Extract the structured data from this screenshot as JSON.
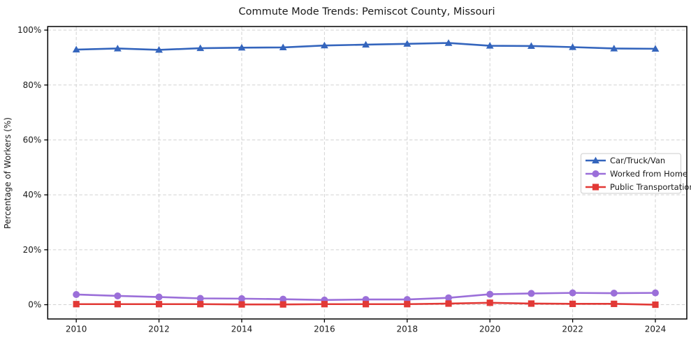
{
  "title": "Commute Mode Trends: Pemiscot County, Missouri",
  "ylabel": "Percentage of Workers (%)",
  "colors": {
    "car": "#3465bd",
    "home": "#9b6fd9",
    "transit": "#e23936",
    "grid": "#d2d2d2",
    "spine": "#000000",
    "legend_border": "#cccccc",
    "background": "#ffffff"
  },
  "chart_data": {
    "type": "line",
    "title": "Commute Mode Trends: Pemiscot County, Missouri",
    "xlabel": "",
    "ylabel": "Percentage of Workers (%)",
    "x": [
      2010,
      2011,
      2012,
      2013,
      2014,
      2015,
      2016,
      2017,
      2018,
      2019,
      2020,
      2021,
      2022,
      2023,
      2024
    ],
    "series": [
      {
        "name": "Car/Truck/Van",
        "color": "#3465bd",
        "marker": "triangle",
        "values": [
          92.9,
          93.3,
          92.8,
          93.4,
          93.6,
          93.7,
          94.4,
          94.7,
          95.0,
          95.3,
          94.3,
          94.2,
          93.8,
          93.3,
          93.2
        ]
      },
      {
        "name": "Worked from Home",
        "color": "#9b6fd9",
        "marker": "circle",
        "values": [
          3.7,
          3.2,
          2.8,
          2.3,
          2.2,
          2.0,
          1.7,
          1.9,
          1.9,
          2.5,
          3.8,
          4.1,
          4.3,
          4.2,
          4.3
        ]
      },
      {
        "name": "Public Transportation",
        "color": "#e23936",
        "marker": "square",
        "values": [
          0.2,
          0.2,
          0.2,
          0.2,
          0.1,
          0.1,
          0.2,
          0.2,
          0.2,
          0.4,
          0.7,
          0.4,
          0.3,
          0.3,
          0.0
        ]
      }
    ],
    "xlim": [
      2009.31,
      2024.76
    ],
    "ylim": [
      -5.2,
      101.3
    ],
    "xticks": {
      "values": [
        2010,
        2012,
        2014,
        2016,
        2018,
        2020,
        2022,
        2024
      ],
      "labels": [
        "2010",
        "2012",
        "2014",
        "2016",
        "2018",
        "2020",
        "2022",
        "2024"
      ]
    },
    "yticks": {
      "values": [
        0,
        20,
        40,
        60,
        80,
        100
      ],
      "labels": [
        "0%",
        "20%",
        "40%",
        "60%",
        "80%",
        "100%"
      ]
    },
    "grid": true,
    "legend_position": "center-right"
  }
}
